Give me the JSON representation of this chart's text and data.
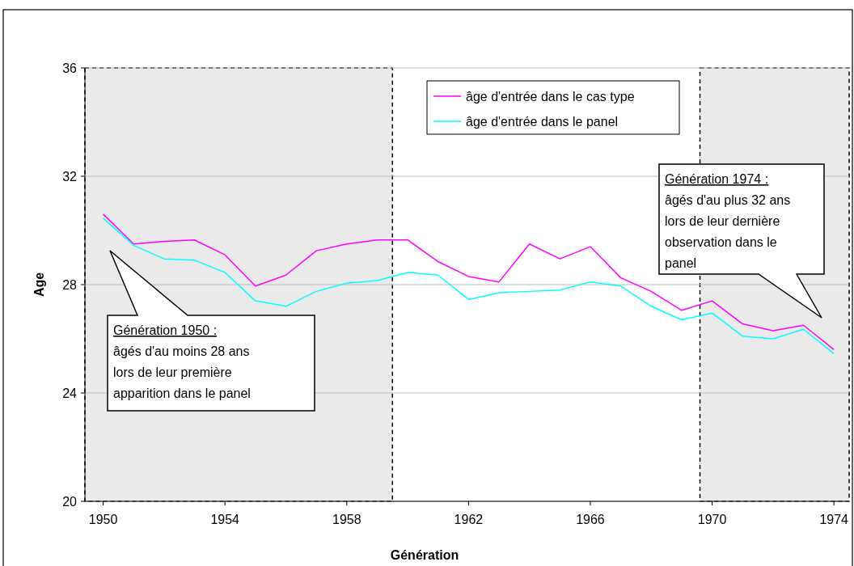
{
  "chart_data": {
    "type": "line",
    "xlabel": "Génération",
    "ylabel": "Age",
    "x": [
      1950,
      1951,
      1952,
      1953,
      1954,
      1955,
      1956,
      1957,
      1958,
      1959,
      1960,
      1961,
      1962,
      1963,
      1964,
      1965,
      1966,
      1967,
      1968,
      1969,
      1970,
      1971,
      1972,
      1973,
      1974
    ],
    "series": [
      {
        "name": "âge d'entrée dans le cas type",
        "color": "#ff00ff",
        "values": [
          30.6,
          29.5,
          29.6,
          29.65,
          29.1,
          27.95,
          28.35,
          29.25,
          29.5,
          29.65,
          29.65,
          28.85,
          28.3,
          28.1,
          29.5,
          28.95,
          29.4,
          28.25,
          27.75,
          27.05,
          27.4,
          26.55,
          26.3,
          26.5,
          25.6
        ]
      },
      {
        "name": "âge d'entrée dans le panel",
        "color": "#00ffff",
        "values": [
          30.45,
          29.45,
          28.95,
          28.9,
          28.45,
          27.4,
          27.2,
          27.75,
          28.05,
          28.15,
          28.45,
          28.35,
          27.45,
          27.7,
          27.75,
          27.8,
          28.1,
          27.95,
          27.2,
          26.7,
          26.95,
          26.1,
          26.0,
          26.35,
          25.45
        ]
      }
    ],
    "xlim": [
      1949.4,
      1974.5
    ],
    "xticks": [
      1950,
      1954,
      1958,
      1962,
      1966,
      1970,
      1974
    ],
    "ylim": [
      20,
      36
    ],
    "yticks": [
      20,
      24,
      28,
      32,
      36
    ],
    "grid": "y",
    "legend": "top",
    "bands": [
      {
        "axis": "x",
        "from": 1949.4,
        "to": 1959.5,
        "color": "#eaeaea"
      },
      {
        "axis": "x",
        "from": 1969.6,
        "to": 1974.5,
        "color": "#eaeaea"
      }
    ],
    "annotations": [
      "Génération 1950 :\nâgés d'au moins 28 ans\nlors de leur première\napparition dans le panel",
      "Génération 1974 :\nâgés d'au plus 32 ans\nlors de leur dernière\nobservation dans le\npanel"
    ]
  }
}
